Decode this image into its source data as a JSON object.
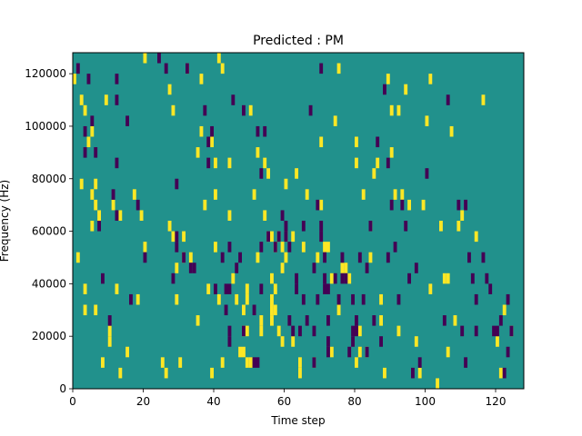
{
  "chart_data": {
    "type": "heatmap",
    "title": "Predicted : PM",
    "xlabel": "Time step",
    "ylabel": "Frequency (Hz)",
    "xlim": [
      0,
      128
    ],
    "ylim": [
      0,
      128000
    ],
    "x_ticks": [
      0,
      20,
      40,
      60,
      80,
      100,
      120
    ],
    "x_tick_labels": [
      "0",
      "20",
      "40",
      "60",
      "80",
      "100",
      "120"
    ],
    "y_ticks": [
      0,
      20000,
      40000,
      60000,
      80000,
      100000,
      120000
    ],
    "y_tick_labels": [
      "0",
      "20000",
      "40000",
      "60000",
      "80000",
      "100000",
      "120000"
    ],
    "grid": false,
    "legend": "none",
    "colors": {
      "background": "#21918c",
      "low": "#440154",
      "high": "#fde725"
    },
    "background_value": 0,
    "cell_height": 4000,
    "high_cells": [
      [
        0,
        116000
      ],
      [
        1,
        48000
      ],
      [
        2,
        108000
      ],
      [
        2,
        76000
      ],
      [
        3,
        104000
      ],
      [
        3,
        36000
      ],
      [
        3,
        28000
      ],
      [
        4,
        92000
      ],
      [
        5,
        96000
      ],
      [
        5,
        72000
      ],
      [
        5,
        60000
      ],
      [
        6,
        76000
      ],
      [
        6,
        68000
      ],
      [
        6,
        28000
      ],
      [
        7,
        64000
      ],
      [
        8,
        8000
      ],
      [
        9,
        108000
      ],
      [
        10,
        20000
      ],
      [
        10,
        16000
      ],
      [
        11,
        68000
      ],
      [
        12,
        36000
      ],
      [
        13,
        64000
      ],
      [
        13,
        4000
      ],
      [
        15,
        12000
      ],
      [
        17,
        72000
      ],
      [
        18,
        32000
      ],
      [
        19,
        64000
      ],
      [
        20,
        124000
      ],
      [
        20,
        52000
      ],
      [
        25,
        8000
      ],
      [
        26,
        4000
      ],
      [
        27,
        112000
      ],
      [
        27,
        60000
      ],
      [
        28,
        56000
      ],
      [
        28,
        104000
      ],
      [
        29,
        44000
      ],
      [
        29,
        32000
      ],
      [
        30,
        8000
      ],
      [
        31,
        56000
      ],
      [
        31,
        48000
      ],
      [
        32,
        120000
      ],
      [
        33,
        48000
      ],
      [
        35,
        88000
      ],
      [
        35,
        24000
      ],
      [
        36,
        96000
      ],
      [
        36,
        116000
      ],
      [
        37,
        68000
      ],
      [
        38,
        36000
      ],
      [
        39,
        92000
      ],
      [
        39,
        4000
      ],
      [
        40,
        84000
      ],
      [
        40,
        72000
      ],
      [
        40,
        52000
      ],
      [
        41,
        124000
      ],
      [
        41,
        32000
      ],
      [
        42,
        120000
      ],
      [
        42,
        8000
      ],
      [
        44,
        84000
      ],
      [
        44,
        64000
      ],
      [
        45,
        40000
      ],
      [
        46,
        32000
      ],
      [
        47,
        12000
      ],
      [
        48,
        12000
      ],
      [
        48,
        20000
      ],
      [
        48,
        28000
      ],
      [
        49,
        8000
      ],
      [
        49,
        20000
      ],
      [
        49,
        36000
      ],
      [
        49,
        32000
      ],
      [
        50,
        104000
      ],
      [
        50,
        8000
      ],
      [
        51,
        72000
      ],
      [
        52,
        88000
      ],
      [
        52,
        48000
      ],
      [
        53,
        24000
      ],
      [
        53,
        20000
      ],
      [
        54,
        84000
      ],
      [
        54,
        64000
      ],
      [
        55,
        80000
      ],
      [
        55,
        56000
      ],
      [
        56,
        56000
      ],
      [
        56,
        32000
      ],
      [
        56,
        28000
      ],
      [
        56,
        40000
      ],
      [
        56,
        24000
      ],
      [
        57,
        52000
      ],
      [
        57,
        28000
      ],
      [
        57,
        36000
      ],
      [
        58,
        20000
      ],
      [
        58,
        56000
      ],
      [
        59,
        52000
      ],
      [
        59,
        44000
      ],
      [
        59,
        16000
      ],
      [
        60,
        76000
      ],
      [
        60,
        56000
      ],
      [
        60,
        48000
      ],
      [
        62,
        56000
      ],
      [
        63,
        80000
      ],
      [
        62,
        16000
      ],
      [
        64,
        4000
      ],
      [
        64,
        8000
      ],
      [
        65,
        52000
      ],
      [
        66,
        72000
      ],
      [
        68,
        8000
      ],
      [
        69,
        48000
      ],
      [
        70,
        68000
      ],
      [
        70,
        92000
      ],
      [
        71,
        52000
      ],
      [
        72,
        52000
      ],
      [
        73,
        40000
      ],
      [
        73,
        12000
      ],
      [
        74,
        100000
      ],
      [
        75,
        120000
      ],
      [
        75,
        28000
      ],
      [
        76,
        44000
      ],
      [
        77,
        44000
      ],
      [
        78,
        40000
      ],
      [
        80,
        92000
      ],
      [
        80,
        84000
      ],
      [
        80,
        8000
      ],
      [
        81,
        20000
      ],
      [
        81,
        12000
      ],
      [
        82,
        72000
      ],
      [
        83,
        12000
      ],
      [
        84,
        60000
      ],
      [
        84,
        48000
      ],
      [
        85,
        80000
      ],
      [
        86,
        84000
      ],
      [
        87,
        32000
      ],
      [
        87,
        24000
      ],
      [
        88,
        4000
      ],
      [
        89,
        116000
      ],
      [
        90,
        104000
      ],
      [
        90,
        88000
      ],
      [
        91,
        72000
      ],
      [
        92,
        104000
      ],
      [
        92,
        20000
      ],
      [
        93,
        72000
      ],
      [
        94,
        112000
      ],
      [
        95,
        68000
      ],
      [
        97,
        16000
      ],
      [
        98,
        4000
      ],
      [
        99,
        68000
      ],
      [
        100,
        100000
      ],
      [
        101,
        116000
      ],
      [
        101,
        36000
      ],
      [
        103,
        0
      ],
      [
        104,
        60000
      ],
      [
        105,
        40000
      ],
      [
        106,
        40000
      ],
      [
        106,
        12000
      ],
      [
        107,
        96000
      ],
      [
        108,
        24000
      ],
      [
        109,
        60000
      ],
      [
        110,
        64000
      ],
      [
        114,
        56000
      ],
      [
        116,
        108000
      ],
      [
        120,
        16000
      ],
      [
        121,
        4000
      ],
      [
        122,
        28000
      ],
      [
        124,
        20000
      ]
    ],
    "low_cells": [
      [
        1,
        120000
      ],
      [
        4,
        116000
      ],
      [
        3,
        96000
      ],
      [
        3,
        88000
      ],
      [
        5,
        100000
      ],
      [
        6,
        88000
      ],
      [
        7,
        60000
      ],
      [
        8,
        40000
      ],
      [
        10,
        24000
      ],
      [
        11,
        72000
      ],
      [
        12,
        64000
      ],
      [
        12,
        116000
      ],
      [
        12,
        108000
      ],
      [
        12,
        84000
      ],
      [
        15,
        100000
      ],
      [
        16,
        32000
      ],
      [
        18,
        68000
      ],
      [
        20,
        48000
      ],
      [
        24,
        124000
      ],
      [
        26,
        120000
      ],
      [
        28,
        40000
      ],
      [
        29,
        56000
      ],
      [
        29,
        52000
      ],
      [
        29,
        76000
      ],
      [
        31,
        48000
      ],
      [
        32,
        120000
      ],
      [
        33,
        44000
      ],
      [
        34,
        44000
      ],
      [
        37,
        104000
      ],
      [
        38,
        92000
      ],
      [
        38,
        84000
      ],
      [
        39,
        96000
      ],
      [
        40,
        36000
      ],
      [
        42,
        48000
      ],
      [
        43,
        36000
      ],
      [
        43,
        28000
      ],
      [
        44,
        36000
      ],
      [
        44,
        20000
      ],
      [
        44,
        16000
      ],
      [
        45,
        108000
      ],
      [
        44,
        52000
      ],
      [
        46,
        44000
      ],
      [
        47,
        48000
      ],
      [
        48,
        20000
      ],
      [
        48,
        104000
      ],
      [
        51,
        28000
      ],
      [
        51,
        8000
      ],
      [
        52,
        96000
      ],
      [
        52,
        8000
      ],
      [
        53,
        80000
      ],
      [
        53,
        52000
      ],
      [
        53,
        36000
      ],
      [
        54,
        96000
      ],
      [
        55,
        56000
      ],
      [
        57,
        52000
      ],
      [
        58,
        56000
      ],
      [
        59,
        64000
      ],
      [
        60,
        56000
      ],
      [
        60,
        60000
      ],
      [
        61,
        52000
      ],
      [
        61,
        24000
      ],
      [
        62,
        20000
      ],
      [
        63,
        36000
      ],
      [
        63,
        40000
      ],
      [
        64,
        20000
      ],
      [
        65,
        60000
      ],
      [
        65,
        32000
      ],
      [
        66,
        24000
      ],
      [
        67,
        104000
      ],
      [
        68,
        44000
      ],
      [
        68,
        20000
      ],
      [
        68,
        8000
      ],
      [
        69,
        68000
      ],
      [
        69,
        32000
      ],
      [
        70,
        120000
      ],
      [
        70,
        60000
      ],
      [
        70,
        56000
      ],
      [
        71,
        48000
      ],
      [
        71,
        40000
      ],
      [
        71,
        36000
      ],
      [
        72,
        36000
      ],
      [
        72,
        24000
      ],
      [
        72,
        16000
      ],
      [
        72,
        12000
      ],
      [
        74,
        40000
      ],
      [
        75,
        32000
      ],
      [
        76,
        48000
      ],
      [
        76,
        40000
      ],
      [
        77,
        40000
      ],
      [
        78,
        12000
      ],
      [
        79,
        20000
      ],
      [
        79,
        32000
      ],
      [
        79,
        16000
      ],
      [
        80,
        24000
      ],
      [
        80,
        20000
      ],
      [
        81,
        48000
      ],
      [
        82,
        32000
      ],
      [
        83,
        12000
      ],
      [
        83,
        44000
      ],
      [
        84,
        60000
      ],
      [
        85,
        24000
      ],
      [
        86,
        92000
      ],
      [
        87,
        16000
      ],
      [
        88,
        112000
      ],
      [
        89,
        48000
      ],
      [
        89,
        84000
      ],
      [
        90,
        68000
      ],
      [
        91,
        52000
      ],
      [
        92,
        32000
      ],
      [
        93,
        68000
      ],
      [
        94,
        60000
      ],
      [
        95,
        40000
      ],
      [
        96,
        4000
      ],
      [
        97,
        44000
      ],
      [
        98,
        8000
      ],
      [
        100,
        80000
      ],
      [
        105,
        24000
      ],
      [
        106,
        108000
      ],
      [
        109,
        68000
      ],
      [
        110,
        20000
      ],
      [
        111,
        68000
      ],
      [
        111,
        8000
      ],
      [
        112,
        48000
      ],
      [
        113,
        40000
      ],
      [
        114,
        32000
      ],
      [
        114,
        20000
      ],
      [
        116,
        48000
      ],
      [
        117,
        40000
      ],
      [
        118,
        36000
      ],
      [
        119,
        20000
      ],
      [
        120,
        20000
      ],
      [
        121,
        24000
      ],
      [
        122,
        4000
      ],
      [
        123,
        12000
      ],
      [
        123,
        32000
      ],
      [
        124,
        20000
      ]
    ]
  }
}
